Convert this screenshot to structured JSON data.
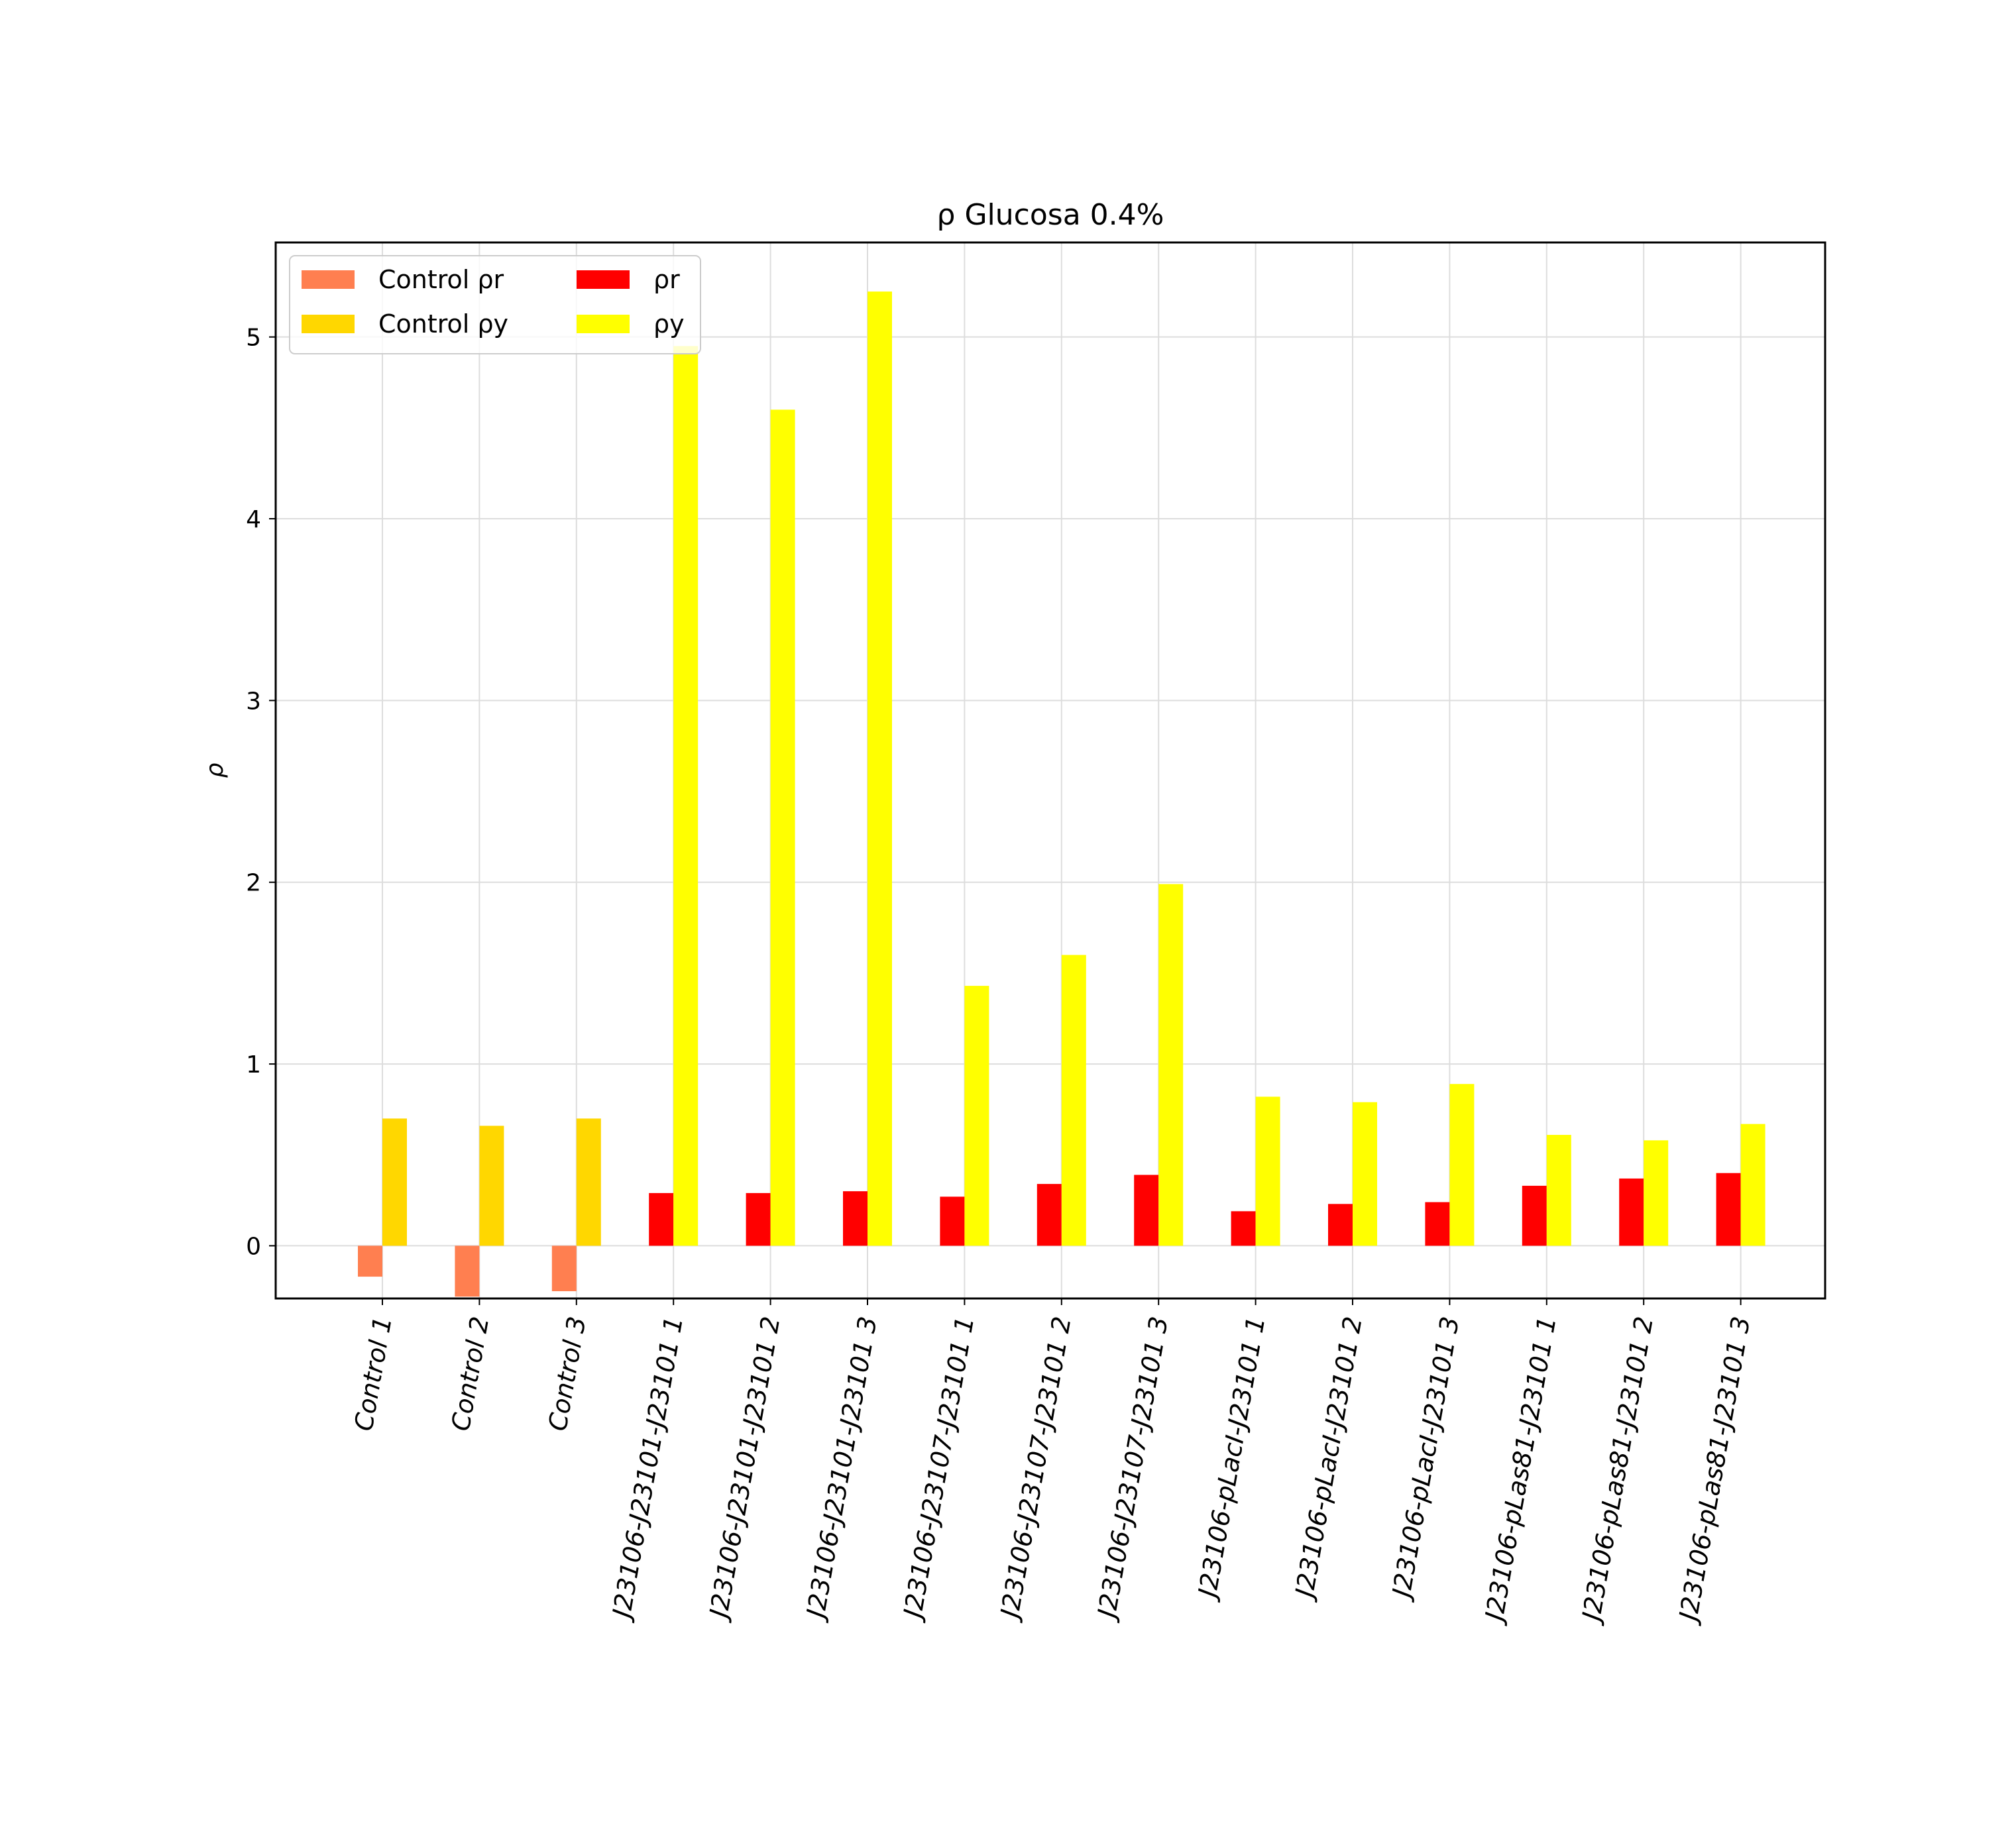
{
  "chart_data": {
    "type": "bar",
    "title": "ρ Glucosa 0.4%",
    "xlabel": "",
    "ylabel": "ρ",
    "ylim": [
      -0.29,
      5.52
    ],
    "yticks": [
      0,
      1,
      2,
      3,
      4,
      5
    ],
    "grid": true,
    "legend_position": "top-left",
    "categories": [
      "Control 1",
      "Control 2",
      "Control 3",
      "J23106-J23101-J23101 1",
      "J23106-J23101-J23101 2",
      "J23106-J23101-J23101 3",
      "J23106-J23107-J23101 1",
      "J23106-J23107-J23101 2",
      "J23106-J23107-J23101 3",
      "J23106-pLacI-J23101 1",
      "J23106-pLacI-J23101 2",
      "J23106-pLacI-J23101 3",
      "J23106-pLas81-J23101 1",
      "J23106-pLas81-J23101 2",
      "J23106-pLas81-J23101 3"
    ],
    "series": [
      {
        "name": "Control ρr",
        "color": "#ff7f50",
        "offset": "left",
        "values": [
          -0.17,
          -0.28,
          -0.25,
          null,
          null,
          null,
          null,
          null,
          null,
          null,
          null,
          null,
          null,
          null,
          null
        ]
      },
      {
        "name": "Control ρy",
        "color": "#ffd700",
        "offset": "right",
        "values": [
          0.7,
          0.66,
          0.7,
          null,
          null,
          null,
          null,
          null,
          null,
          null,
          null,
          null,
          null,
          null,
          null
        ]
      },
      {
        "name": "ρr",
        "color": "#ff0000",
        "offset": "left",
        "values": [
          null,
          null,
          null,
          0.29,
          0.29,
          0.3,
          0.27,
          0.34,
          0.39,
          0.19,
          0.23,
          0.24,
          0.33,
          0.37,
          0.4
        ]
      },
      {
        "name": "ρy",
        "color": "#ffff00",
        "offset": "right",
        "values": [
          null,
          null,
          null,
          4.95,
          4.6,
          5.25,
          1.43,
          1.6,
          1.99,
          0.82,
          0.79,
          0.89,
          0.61,
          0.58,
          0.67
        ]
      }
    ]
  }
}
